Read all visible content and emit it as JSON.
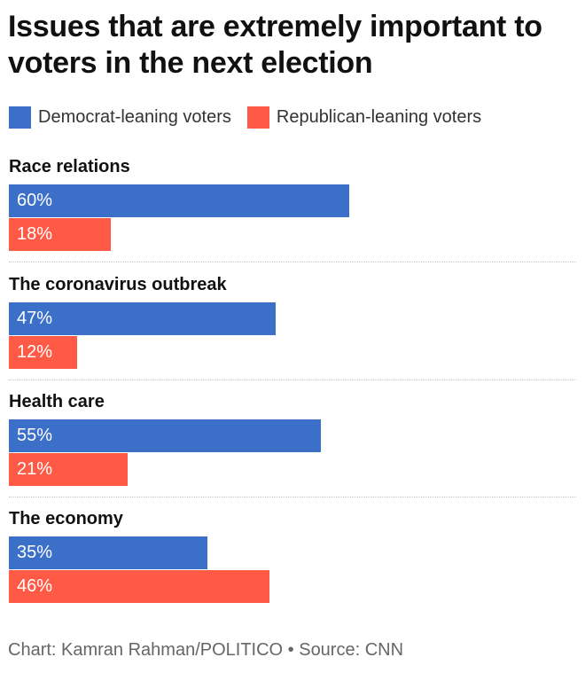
{
  "title": "Issues that are extremely important to voters in the next election",
  "legend": [
    {
      "label": "Democrat-leaning voters",
      "color": "#3b6fc8"
    },
    {
      "label": "Republican-leaning voters",
      "color": "#fe5a45"
    }
  ],
  "footer": "Chart: Kamran Rahman/POLITICO • Source: CNN",
  "chart_data": {
    "type": "bar",
    "orientation": "horizontal",
    "categories": [
      "Race relations",
      "The coronavirus outbreak",
      "Health care",
      "The economy"
    ],
    "series": [
      {
        "name": "Democrat-leaning voters",
        "color": "#3b6fc8",
        "values": [
          60,
          47,
          55,
          35
        ],
        "labels": [
          "60%",
          "47%",
          "55%",
          "35%"
        ]
      },
      {
        "name": "Republican-leaning voters",
        "color": "#fe5a45",
        "values": [
          18,
          12,
          21,
          46
        ],
        "labels": [
          "18%",
          "12%",
          "21%",
          "46%"
        ]
      }
    ],
    "xlim": [
      0,
      100
    ],
    "grid": false,
    "legend_position": "top-left"
  }
}
